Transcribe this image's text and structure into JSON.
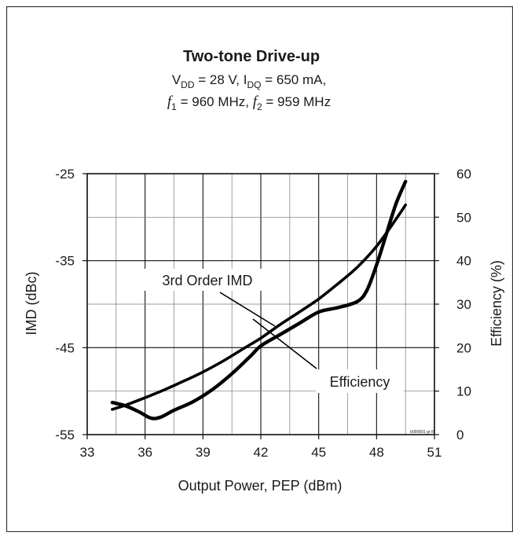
{
  "chart_data": {
    "type": "line",
    "title": "Two-tone Drive-up",
    "subtitle_line1": {
      "v": "V",
      "v_sub": "DD",
      "v_rest": " = 28 V, I",
      "i_sub": "DQ",
      "i_rest": " = 650 mA,"
    },
    "subtitle_line2": {
      "f1": "f",
      "f1_sub": "1",
      "f1_rest": " = 960 MHz, ",
      "f2": "f",
      "f2_sub": "2",
      "f2_rest": " = 959 MHz"
    },
    "xlabel": "Output Power, PEP (dBm)",
    "ylabel_left": "IMD (dBc)",
    "ylabel_right": "Efficiency (%)",
    "xlim": [
      33,
      51
    ],
    "ylim_left": [
      -55,
      -25
    ],
    "ylim_right": [
      0,
      60
    ],
    "x_ticks": [
      "33",
      "36",
      "39",
      "42",
      "45",
      "48",
      "51"
    ],
    "y_ticks_left": [
      "-25",
      "-35",
      "-45",
      "-55"
    ],
    "y_ticks_right": [
      "60",
      "50",
      "40",
      "30",
      "20",
      "10",
      "0"
    ],
    "grid": true,
    "footnote": "b090001 gr 8",
    "series": [
      {
        "name": "3rd Order IMD",
        "axis": "left",
        "x": [
          34.3,
          35.0,
          35.7,
          36.3,
          36.8,
          37.5,
          38.5,
          39.5,
          40.5,
          41.5,
          42.0,
          43.0,
          44.0,
          45.0,
          46.0,
          47.0,
          47.5,
          48.0,
          48.5,
          49.0,
          49.5
        ],
        "y": [
          -51.3,
          -51.7,
          -52.4,
          -53.1,
          -53.0,
          -52.2,
          -51.2,
          -49.8,
          -48.0,
          -45.9,
          -44.8,
          -43.5,
          -42.2,
          -40.9,
          -40.4,
          -39.7,
          -38.4,
          -35.5,
          -32.0,
          -28.5,
          -25.9
        ]
      },
      {
        "name": "Efficiency",
        "axis": "right",
        "x": [
          34.3,
          35.0,
          36.0,
          37.0,
          38.0,
          39.0,
          40.0,
          41.0,
          42.0,
          43.0,
          44.0,
          45.0,
          46.0,
          47.0,
          48.0,
          49.0,
          49.5
        ],
        "y": [
          5.8,
          6.8,
          8.5,
          10.3,
          12.3,
          14.4,
          16.8,
          19.5,
          22.2,
          25.3,
          28.2,
          31.2,
          34.7,
          38.5,
          43.3,
          49.5,
          52.8
        ]
      }
    ],
    "annotations": [
      {
        "text": "3rd Order IMD",
        "series": "3rd Order IMD"
      },
      {
        "text": "Efficiency",
        "series": "Efficiency"
      }
    ]
  }
}
